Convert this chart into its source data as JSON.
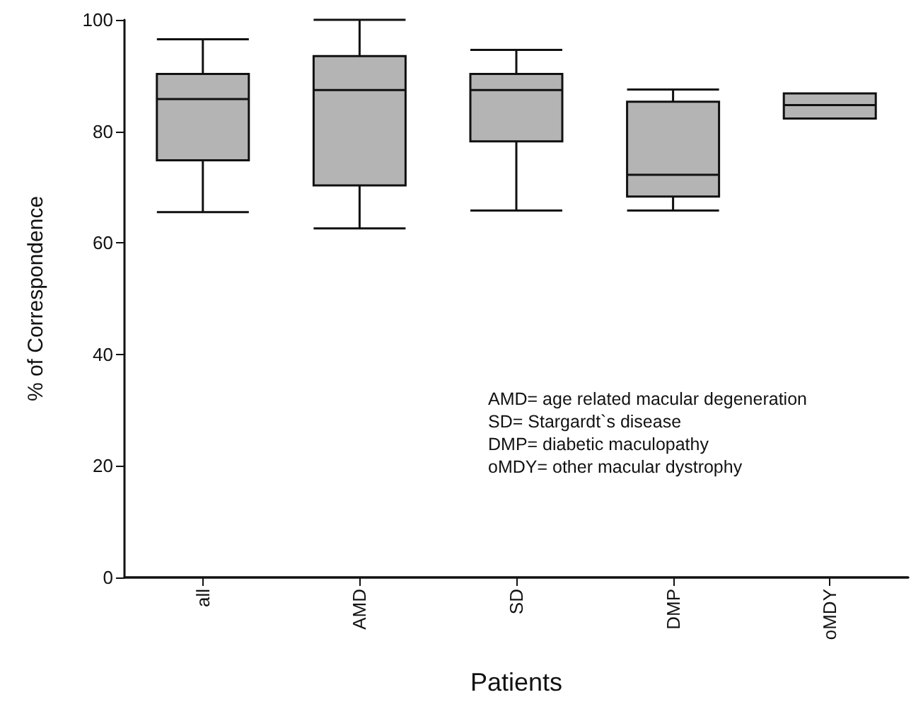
{
  "chart_data": {
    "type": "box",
    "xlabel": "Patients",
    "ylabel": "% of Correspondence",
    "categories": [
      "all",
      "AMD",
      "SD",
      "DMP",
      "oMDY"
    ],
    "boxes": [
      {
        "low": 65.5,
        "q1": 74.8,
        "median": 85.8,
        "q3": 90.3,
        "high": 96.5
      },
      {
        "low": 62.6,
        "q1": 70.3,
        "median": 87.4,
        "q3": 93.5,
        "high": 100
      },
      {
        "low": 65.8,
        "q1": 78.2,
        "median": 87.4,
        "q3": 90.3,
        "high": 94.6
      },
      {
        "low": 65.8,
        "q1": 68.3,
        "median": 72.2,
        "q3": 85.3,
        "high": 87.5
      },
      {
        "low": 82.3,
        "q1": 82.3,
        "median": 84.7,
        "q3": 86.8,
        "high": 86.8
      }
    ],
    "color": "#b4b4b4",
    "ylim": [
      0,
      100
    ],
    "yticks": [
      0,
      20,
      40,
      60,
      80,
      100
    ],
    "grid": false,
    "annotations": [
      "AMD= age related macular degeneration",
      "SD= Stargardt`s disease",
      "DMP= diabetic maculopathy",
      "oMDY= other macular dystrophy"
    ]
  }
}
